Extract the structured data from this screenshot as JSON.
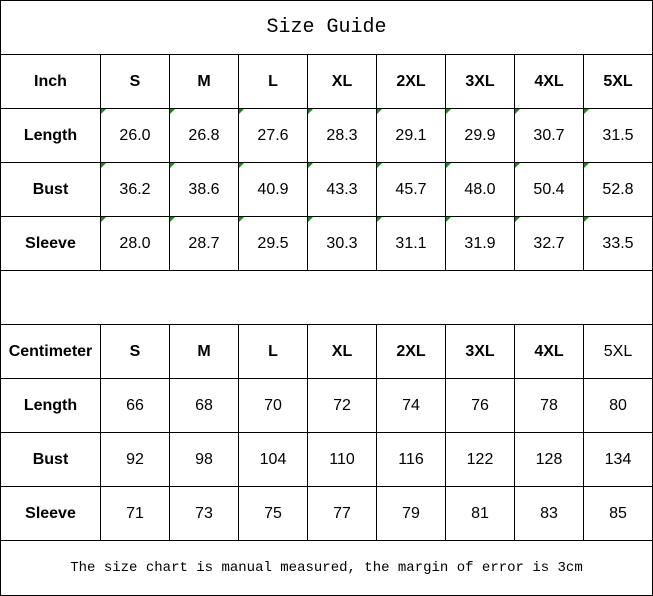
{
  "title": "Size Guide",
  "inch": {
    "unit_label": "Inch",
    "sizes": [
      "S",
      "M",
      "L",
      "XL",
      "2XL",
      "3XL",
      "4XL",
      "5XL"
    ],
    "rows": [
      {
        "label": "Length",
        "values": [
          "26.0",
          "26.8",
          "27.6",
          "28.3",
          "29.1",
          "29.9",
          "30.7",
          "31.5"
        ]
      },
      {
        "label": "Bust",
        "values": [
          "36.2",
          "38.6",
          "40.9",
          "43.3",
          "45.7",
          "48.0",
          "50.4",
          "52.8"
        ]
      },
      {
        "label": "Sleeve",
        "values": [
          "28.0",
          "28.7",
          "29.5",
          "30.3",
          "31.1",
          "31.9",
          "32.7",
          "33.5"
        ]
      }
    ]
  },
  "cm": {
    "unit_label": "Centimeter",
    "sizes": [
      "S",
      "M",
      "L",
      "XL",
      "2XL",
      "3XL",
      "4XL",
      "5XL"
    ],
    "rows": [
      {
        "label": "Length",
        "values": [
          "66",
          "68",
          "70",
          "72",
          "74",
          "76",
          "78",
          "80"
        ]
      },
      {
        "label": "Bust",
        "values": [
          "92",
          "98",
          "104",
          "110",
          "116",
          "122",
          "128",
          "134"
        ]
      },
      {
        "label": "Sleeve",
        "values": [
          "71",
          "73",
          "75",
          "77",
          "79",
          "81",
          "83",
          "85"
        ]
      }
    ]
  },
  "note": "The size chart is manual measured, the margin of error is 3cm",
  "colors": {
    "border": "#000000",
    "cell_marker": "#1a8a1a"
  }
}
